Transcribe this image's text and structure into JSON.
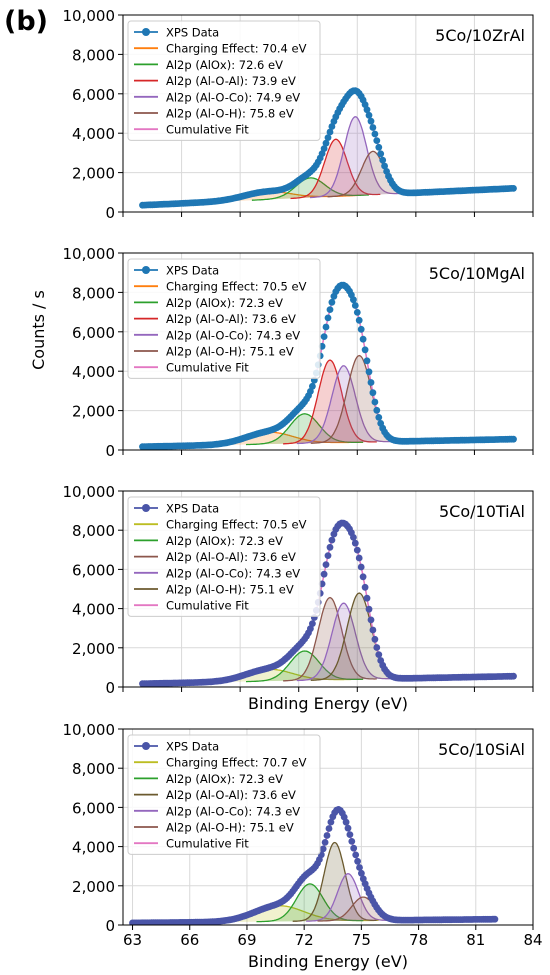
{
  "figure": {
    "panel_label": "(b)",
    "y_axis_label": "Counts / s",
    "x_axis_label": "Binding Energy (eV)"
  },
  "chart_data": [
    {
      "type": "line",
      "sample": "5Co/10ZrAl",
      "xlim": [
        63,
        84
      ],
      "ylim": [
        0,
        10000
      ],
      "yticks": [
        0,
        2000,
        4000,
        6000,
        8000,
        10000
      ],
      "yticklabels": [
        "0",
        "2,000",
        "4,000",
        "6,000",
        "8,000",
        "10,000"
      ],
      "xlabel": "",
      "grid": true,
      "legend_position": "top-left",
      "data_range": [
        64,
        83
      ],
      "data_color": "#1f77b4",
      "background": {
        "a": 300,
        "b": 45
      },
      "peaks": [
        {
          "name": "Charging Effect: 70.4 eV",
          "center": 70.4,
          "amp": 400,
          "sigma": 1.2,
          "color": "#ff7f0e"
        },
        {
          "name": "Al2p (AlOx): 72.6 eV",
          "center": 72.6,
          "amp": 1000,
          "sigma": 0.75,
          "color": "#2ca02c"
        },
        {
          "name": "Al2p (Al-O-Al): 73.9 eV",
          "center": 73.9,
          "amp": 2900,
          "sigma": 0.58,
          "color": "#d62728"
        },
        {
          "name": "Al2p (Al-O-Co): 74.9 eV",
          "center": 74.9,
          "amp": 4000,
          "sigma": 0.58,
          "color": "#9467bd"
        },
        {
          "name": "Al2p (Al-O-H): 75.8 eV",
          "center": 75.8,
          "amp": 2200,
          "sigma": 0.58,
          "color": "#8c564b"
        }
      ],
      "legend": [
        "XPS Data",
        "Charging Effect: 70.4 eV",
        "Al2p (AlOx): 72.6 eV",
        "Al2p (Al-O-Al): 73.9 eV",
        "Al2p (Al-O-Co): 74.9 eV",
        "Al2p (Al-O-H): 75.8 eV",
        "Cumulative Fit"
      ]
    },
    {
      "type": "line",
      "sample": "5Co/10MgAl",
      "xlim": [
        63,
        84
      ],
      "ylim": [
        0,
        10000
      ],
      "yticks": [
        0,
        2000,
        4000,
        6000,
        8000,
        10000
      ],
      "yticklabels": [
        "0",
        "2,000",
        "4,000",
        "6,000",
        "8,000",
        "10,000"
      ],
      "xlabel": "",
      "grid": true,
      "legend_position": "top-left",
      "data_range": [
        64,
        83
      ],
      "data_color": "#1f77b4",
      "background": {
        "a": 150,
        "b": 20
      },
      "peaks": [
        {
          "name": "Charging Effect: 70.5 eV",
          "center": 70.5,
          "amp": 600,
          "sigma": 1.2,
          "color": "#ff7f0e"
        },
        {
          "name": "Al2p (AlOx): 72.3 eV",
          "center": 72.3,
          "amp": 1500,
          "sigma": 0.75,
          "color": "#2ca02c"
        },
        {
          "name": "Al2p (Al-O-Al): 73.6 eV",
          "center": 73.6,
          "amp": 4200,
          "sigma": 0.6,
          "color": "#d62728"
        },
        {
          "name": "Al2p (Al-O-Co): 74.3 eV",
          "center": 74.3,
          "amp": 3900,
          "sigma": 0.6,
          "color": "#9467bd"
        },
        {
          "name": "Al2p (Al-O-H): 75.1 eV",
          "center": 75.1,
          "amp": 4400,
          "sigma": 0.62,
          "color": "#8c564b"
        }
      ],
      "legend": [
        "XPS Data",
        "Charging Effect: 70.5 eV",
        "Al2p (AlOx): 72.3 eV",
        "Al2p (Al-O-Al): 73.6 eV",
        "Al2p (Al-O-Co): 74.3 eV",
        "Al2p (Al-O-H): 75.1 eV",
        "Cumulative Fit"
      ]
    },
    {
      "type": "line",
      "sample": "5Co/10TiAl",
      "xlim": [
        63,
        84
      ],
      "ylim": [
        0,
        10000
      ],
      "yticks": [
        0,
        2000,
        4000,
        6000,
        8000,
        10000
      ],
      "yticklabels": [
        "0",
        "2,000",
        "4,000",
        "6,000",
        "8,000",
        "10,000"
      ],
      "xlabel": "Binding Energy (eV)",
      "grid": true,
      "legend_position": "top-left",
      "data_range": [
        64,
        83
      ],
      "data_color": "#4a55a8",
      "background": {
        "a": 150,
        "b": 20
      },
      "peaks": [
        {
          "name": "Charging Effect: 70.5 eV",
          "center": 70.5,
          "amp": 600,
          "sigma": 1.2,
          "color": "#bcbd22"
        },
        {
          "name": "Al2p (AlOx): 72.3 eV",
          "center": 72.3,
          "amp": 1500,
          "sigma": 0.75,
          "color": "#2ca02c"
        },
        {
          "name": "Al2p (Al-O-Al): 73.6 eV",
          "center": 73.6,
          "amp": 4200,
          "sigma": 0.6,
          "color": "#8c564b"
        },
        {
          "name": "Al2p (Al-O-Co): 74.3 eV",
          "center": 74.3,
          "amp": 3900,
          "sigma": 0.6,
          "color": "#9467bd"
        },
        {
          "name": "Al2p (Al-O-H): 75.1 eV",
          "center": 75.1,
          "amp": 4400,
          "sigma": 0.62,
          "color": "#6b5a2e"
        }
      ],
      "legend": [
        "XPS Data",
        "Charging Effect: 70.5 eV",
        "Al2p (AlOx): 72.3 eV",
        "Al2p (Al-O-Al): 73.6 eV",
        "Al2p (Al-O-Co): 74.3 eV",
        "Al2p (Al-O-H): 75.1 eV",
        "Cumulative Fit"
      ]
    },
    {
      "type": "line",
      "sample": "5Co/10SiAl",
      "xlim": [
        62.5,
        84
      ],
      "ylim": [
        0,
        10000
      ],
      "yticks": [
        0,
        2000,
        4000,
        6000,
        8000,
        10000
      ],
      "yticklabels": [
        "0",
        "2,000",
        "4,000",
        "6,000",
        "8,000",
        "10,000"
      ],
      "xticks": [
        63,
        66,
        69,
        72,
        75,
        78,
        81,
        84
      ],
      "xticklabels": [
        "63",
        "66",
        "69",
        "72",
        "75",
        "78",
        "81",
        "84"
      ],
      "xlabel": "Binding Energy (eV)",
      "grid": true,
      "legend_position": "top-left",
      "data_range": [
        63,
        82
      ],
      "data_color": "#4a55a8",
      "background": {
        "a": 100,
        "b": 10
      },
      "peaks": [
        {
          "name": "Charging Effect: 70.7 eV",
          "center": 70.7,
          "amp": 800,
          "sigma": 1.3,
          "color": "#bcbd22"
        },
        {
          "name": "Al2p (AlOx): 72.3 eV",
          "center": 72.3,
          "amp": 1900,
          "sigma": 0.7,
          "color": "#2ca02c"
        },
        {
          "name": "Al2p (Al-O-Al): 73.6 eV",
          "center": 73.6,
          "amp": 4000,
          "sigma": 0.55,
          "color": "#6b5a2e"
        },
        {
          "name": "Al2p (Al-O-Co): 74.3 eV",
          "center": 74.3,
          "amp": 2400,
          "sigma": 0.55,
          "color": "#9467bd"
        },
        {
          "name": "Al2p (Al-O-H): 75.1 eV",
          "center": 75.1,
          "amp": 1200,
          "sigma": 0.6,
          "color": "#8c564b"
        }
      ],
      "legend": [
        "XPS Data",
        "Charging Effect: 70.7 eV",
        "Al2p (AlOx): 72.3 eV",
        "Al2p (Al-O-Al): 73.6 eV",
        "Al2p (Al-O-Co): 74.3 eV",
        "Al2p (Al-O-H): 75.1 eV",
        "Cumulative Fit"
      ]
    }
  ]
}
